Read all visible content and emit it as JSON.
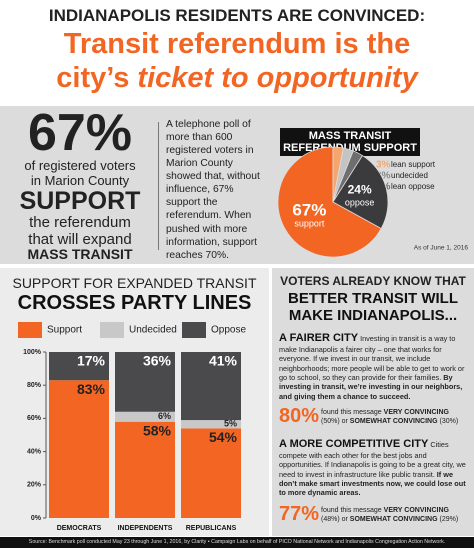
{
  "header": {
    "line1": "INDIANAPOLIS RESIDENTS ARE CONVINCED:",
    "line2": "Transit referendum is the",
    "line3a": "city’s ",
    "line3b": "ticket to opportunity"
  },
  "stat": {
    "big": "67%",
    "l1": "of registered voters",
    "l2": "in Marion County",
    "l3": "SUPPORT",
    "l4": "the referendum",
    "l5": "that will expand",
    "l6": "MASS TRANSIT",
    "paragraph": "A telephone poll of more than 600 registered voters in Marion County showed that, without influence, 67% support the referendum. When pushed with more information, support reaches 70%."
  },
  "chart_data": [
    {
      "type": "pie",
      "title": "MASS TRANSIT REFERENDUM SUPPORT",
      "note": "As of June 1, 2016",
      "categories": [
        "support",
        "lean support",
        "undecided",
        "lean oppose",
        "oppose"
      ],
      "values": [
        67,
        3,
        3,
        3,
        24
      ],
      "value_labels": [
        "67%",
        "3%",
        "3%",
        "3%",
        "24%"
      ],
      "colors": [
        "#f26522",
        "#f5a66e",
        "#c4c4c4",
        "#6e6e6e",
        "#3b3b3d"
      ]
    },
    {
      "type": "stacked_bar",
      "title": "SUPPORT FOR EXPANDED TRANSIT",
      "subtitle": "CROSSES PARTY LINES",
      "categories": [
        "DEMOCRATS",
        "INDEPENDENTS",
        "REPUBLICANS"
      ],
      "series": [
        {
          "name": "Support",
          "color": "#f26522",
          "values": [
            83,
            58,
            54
          ],
          "value_labels": [
            "83%",
            "58%",
            "54%"
          ]
        },
        {
          "name": "Undecided",
          "color": "#c8c8c8",
          "values": [
            0,
            6,
            5
          ],
          "value_labels": [
            null,
            "6%",
            "5%"
          ]
        },
        {
          "name": "Oppose",
          "color": "#4a4a4c",
          "values": [
            17,
            36,
            41
          ],
          "value_labels": [
            "17%",
            "36%",
            "41%"
          ]
        }
      ],
      "ylim": [
        0,
        100
      ],
      "yticks": [
        {
          "value": 0,
          "label": "0%"
        },
        {
          "value": 20,
          "label": "20%"
        },
        {
          "value": 40,
          "label": "40%"
        },
        {
          "value": 60,
          "label": "60%"
        },
        {
          "value": 80,
          "label": "80%"
        },
        {
          "value": 100,
          "label": "100%"
        }
      ]
    }
  ],
  "voters": {
    "l1": "VOTERS ALREADY KNOW THAT",
    "l2": "BETTER TRANSIT WILL",
    "l3": "MAKE INDIANAPOLIS...",
    "fair": {
      "heading": "A FAIRER CITY",
      "text": " Investing in transit is a way to make Indianapolis a fairer city – one that works for everyone. If we invest in our transit, we include neighborhoods; more people will be able to get to work or go to school, so they can provide for their families. ",
      "bold": "By investing in transit, we’re investing in our neighbors, and giving them a chance to succeed.",
      "pct": "80%",
      "s1": "found this message ",
      "s2": "VERY CONVINCING",
      "s3": "(50%) or ",
      "s4": "SOMEWHAT CONVINCING",
      "s5": " (30%)"
    },
    "comp": {
      "heading": "A MORE COMPETITIVE CITY",
      "text": " Cities compete with each other for the best jobs and opportunities. If Indianapolis is going to be a great city, we need to invest in infrastructure like public transit. ",
      "bold": "If we don’t make smart investments now, we could lose out to more dynamic areas.",
      "pct": "77%",
      "s1": "found this message ",
      "s2": "VERY CONVINCING",
      "s3": "(48%) or ",
      "s4": "SOMEWHAT CONVINCING",
      "s5": " (29%)"
    }
  },
  "footer": "Source: Benchmark poll conducted May 23 through June 1, 2016, by Clarity • Campaign Labs on behalf of PICO National Network and Indianapolis Congregation Action Network."
}
